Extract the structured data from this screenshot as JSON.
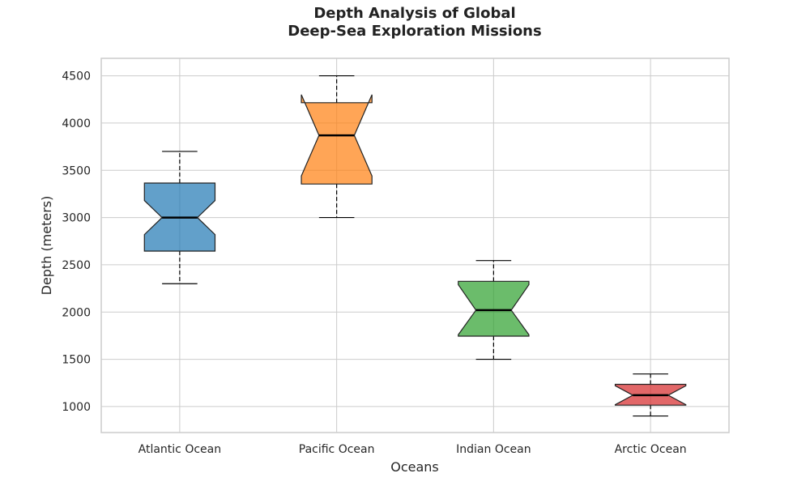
{
  "chart_data": {
    "type": "boxplot",
    "title_lines": [
      "Depth Analysis of Global",
      "Deep-Sea Exploration Missions"
    ],
    "xlabel": "Oceans",
    "ylabel": "Depth (meters)",
    "categories": [
      "Atlantic Ocean",
      "Pacific Ocean",
      "Indian Ocean",
      "Arctic Ocean"
    ],
    "ylim": [
      725,
      4685
    ],
    "yticks": [
      1000,
      1500,
      2000,
      2500,
      3000,
      3500,
      4000,
      4500
    ],
    "grid": true,
    "notched": true,
    "boxes": [
      {
        "whislo": 2300,
        "q1": 2645,
        "med": 3000,
        "q3": 3365,
        "whishi": 3700,
        "notchlo": 2820,
        "notchhi": 3180,
        "color": "#1f77b4"
      },
      {
        "whislo": 3000,
        "q1": 3355,
        "med": 3870,
        "q3": 4215,
        "whishi": 4500,
        "notchlo": 3440,
        "notchhi": 4300,
        "color": "#ff7f0e"
      },
      {
        "whislo": 1500,
        "q1": 1745,
        "med": 2020,
        "q3": 2325,
        "whishi": 2545,
        "notchlo": 1760,
        "notchhi": 2290,
        "color": "#2ca02c"
      },
      {
        "whislo": 900,
        "q1": 1015,
        "med": 1120,
        "q3": 1235,
        "whishi": 1345,
        "notchlo": 1020,
        "notchhi": 1220,
        "color": "#d62728"
      }
    ]
  }
}
